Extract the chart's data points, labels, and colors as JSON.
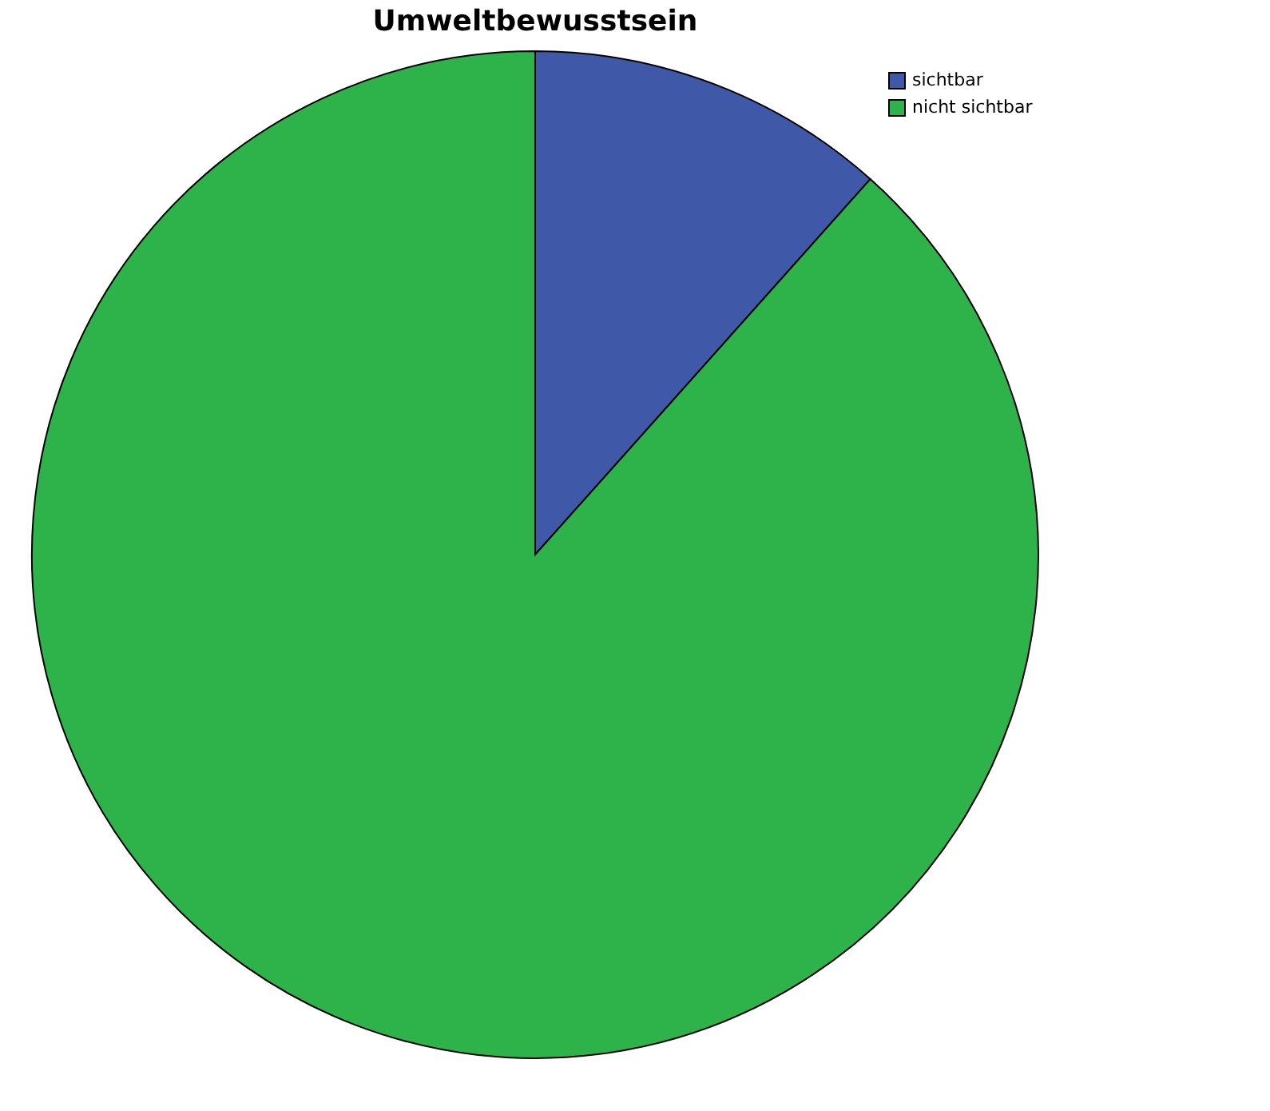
{
  "chart_data": {
    "type": "pie",
    "title": "Umweltbewusstsein",
    "categories": [
      "sichtbar",
      "nicht sichtbar"
    ],
    "values": [
      11.6,
      88.4
    ],
    "colors": [
      "#3f58a8",
      "#2db34a"
    ],
    "legend": "top right"
  }
}
